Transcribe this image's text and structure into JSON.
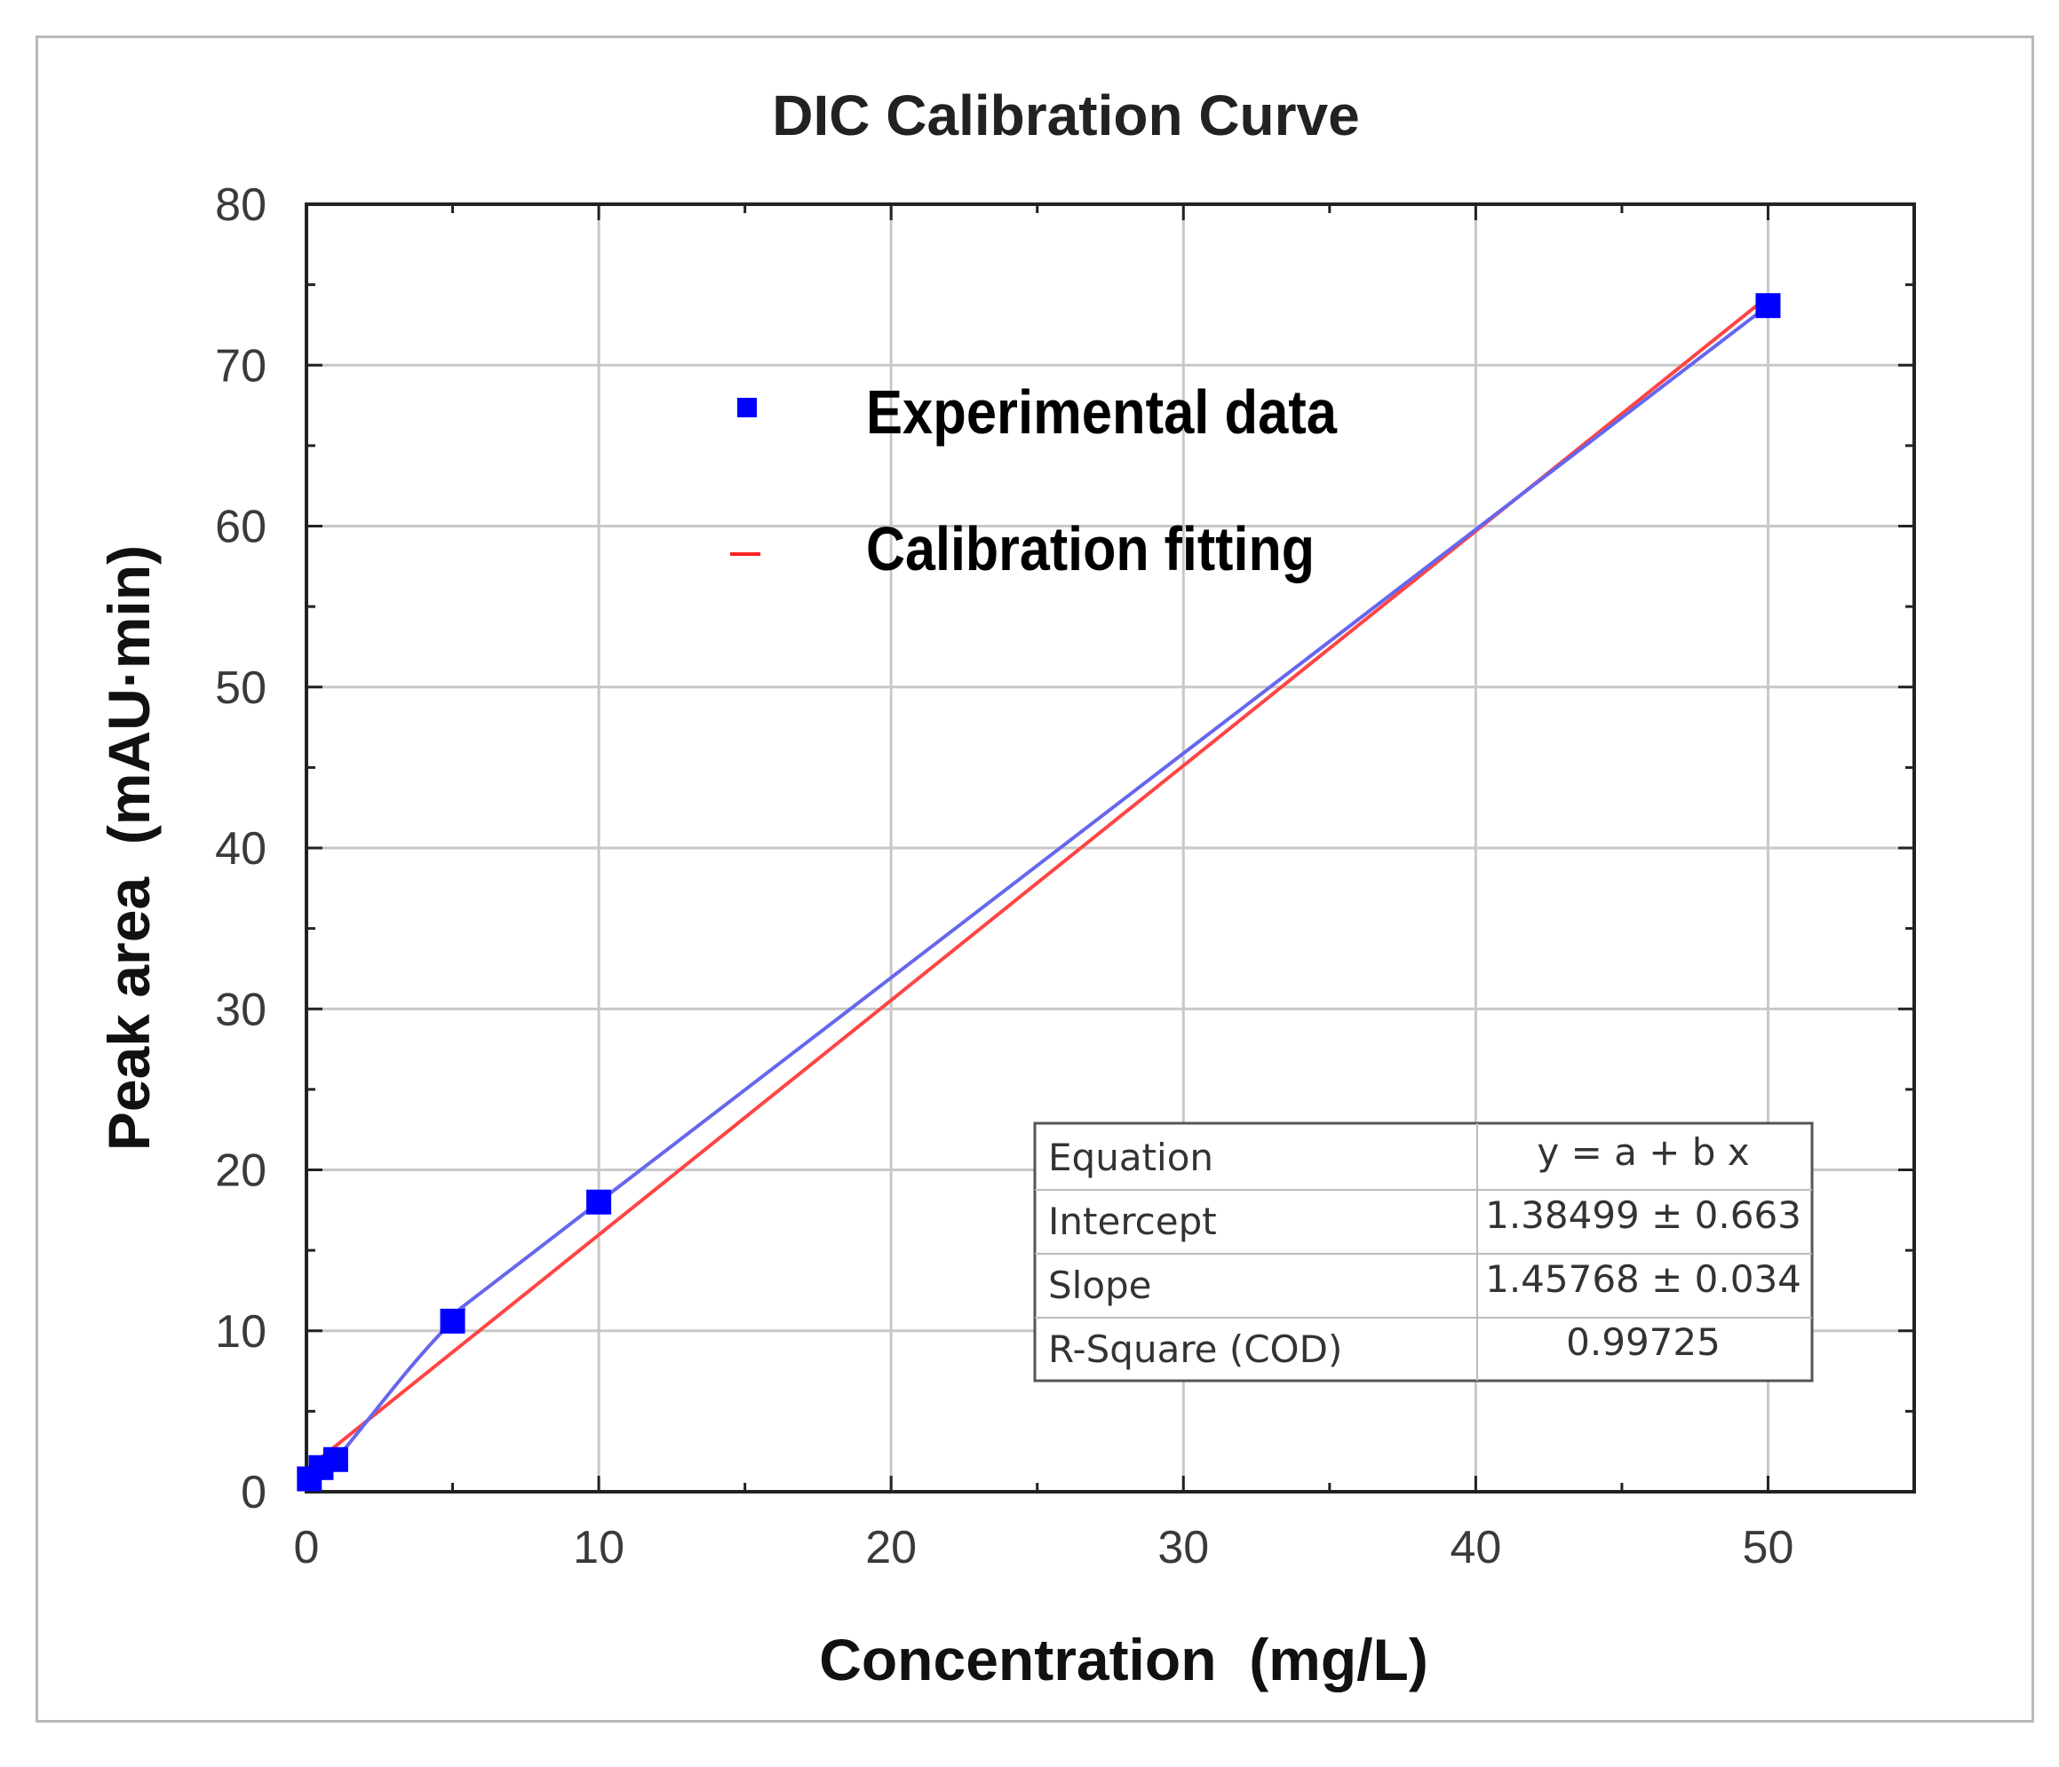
{
  "chart_data": {
    "type": "scatter",
    "title": "DIC Calibration Curve",
    "xlabel": "Concentration  (mg/L)",
    "ylabel": "Peak area  (mAU·min)",
    "xlim": [
      0,
      55
    ],
    "ylim": [
      0,
      80
    ],
    "xticks": [
      0,
      10,
      20,
      30,
      40,
      50
    ],
    "yticks": [
      0,
      10,
      20,
      30,
      40,
      50,
      60,
      70,
      80
    ],
    "grid": true,
    "legend_position": "top-center",
    "series": [
      {
        "name": "Experimental data",
        "kind": "scatter-with-smooth-line",
        "marker_color": "#0000ff",
        "line_color": "#6666ee",
        "x": [
          0.1,
          0.5,
          1,
          5,
          10,
          50
        ],
        "y": [
          0.8,
          1.5,
          2.0,
          10.6,
          18.0,
          73.7
        ]
      },
      {
        "name": "Calibration fitting",
        "kind": "line",
        "line_color": "#ff4444",
        "intercept": 1.38499,
        "slope": 1.45768,
        "x": [
          0,
          50
        ],
        "y": [
          1.38499,
          74.26899
        ]
      }
    ],
    "fit_table": {
      "rows": [
        {
          "label": "Equation",
          "value": "y = a + b x"
        },
        {
          "label": "Intercept",
          "value": "1.38499 ± 0.663"
        },
        {
          "label": "Slope",
          "value": "1.45768 ± 0.034"
        },
        {
          "label": "R-Square (COD)",
          "value": "0.99725"
        }
      ]
    }
  }
}
